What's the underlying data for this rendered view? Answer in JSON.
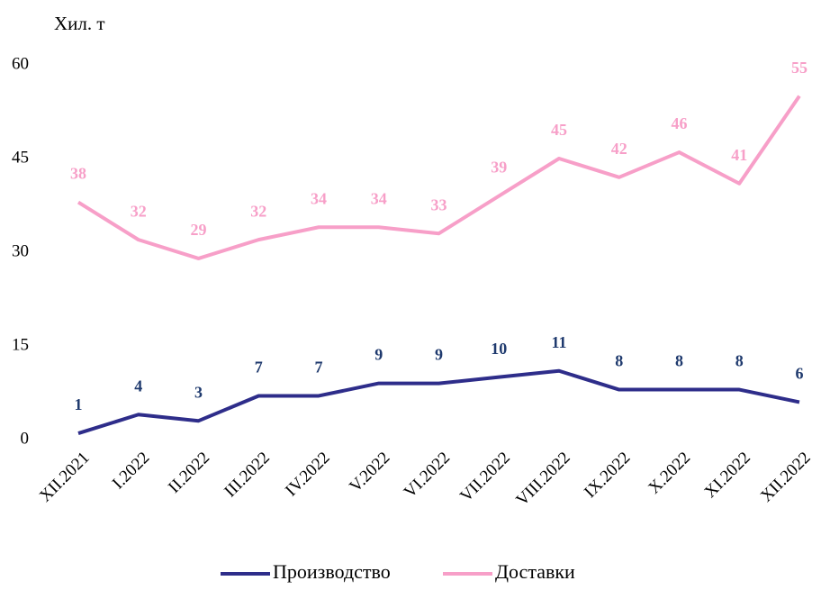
{
  "chart_data": {
    "type": "line",
    "y_label": "Хил. т",
    "categories": [
      "XII.2021",
      "I.2022",
      "II.2022",
      "III.2022",
      "IV.2022",
      "V.2022",
      "VI.2022",
      "VII.2022",
      "VIII.2022",
      "IX.2022",
      "X.2022",
      "XI.2022",
      "XII.2022"
    ],
    "series": [
      {
        "name": "Производство",
        "color": "#2e2d8a",
        "values": [
          1,
          4,
          3,
          7,
          7,
          9,
          9,
          10,
          11,
          8,
          8,
          8,
          6
        ]
      },
      {
        "name": "Доставки",
        "color": "#f79fc8",
        "values": [
          38,
          32,
          29,
          32,
          34,
          34,
          33,
          39,
          45,
          42,
          46,
          41,
          55
        ]
      }
    ],
    "ylim": [
      0,
      60
    ],
    "yticks": [
      0,
      15,
      30,
      45,
      60
    ],
    "grid": false,
    "legend": "bottom"
  }
}
